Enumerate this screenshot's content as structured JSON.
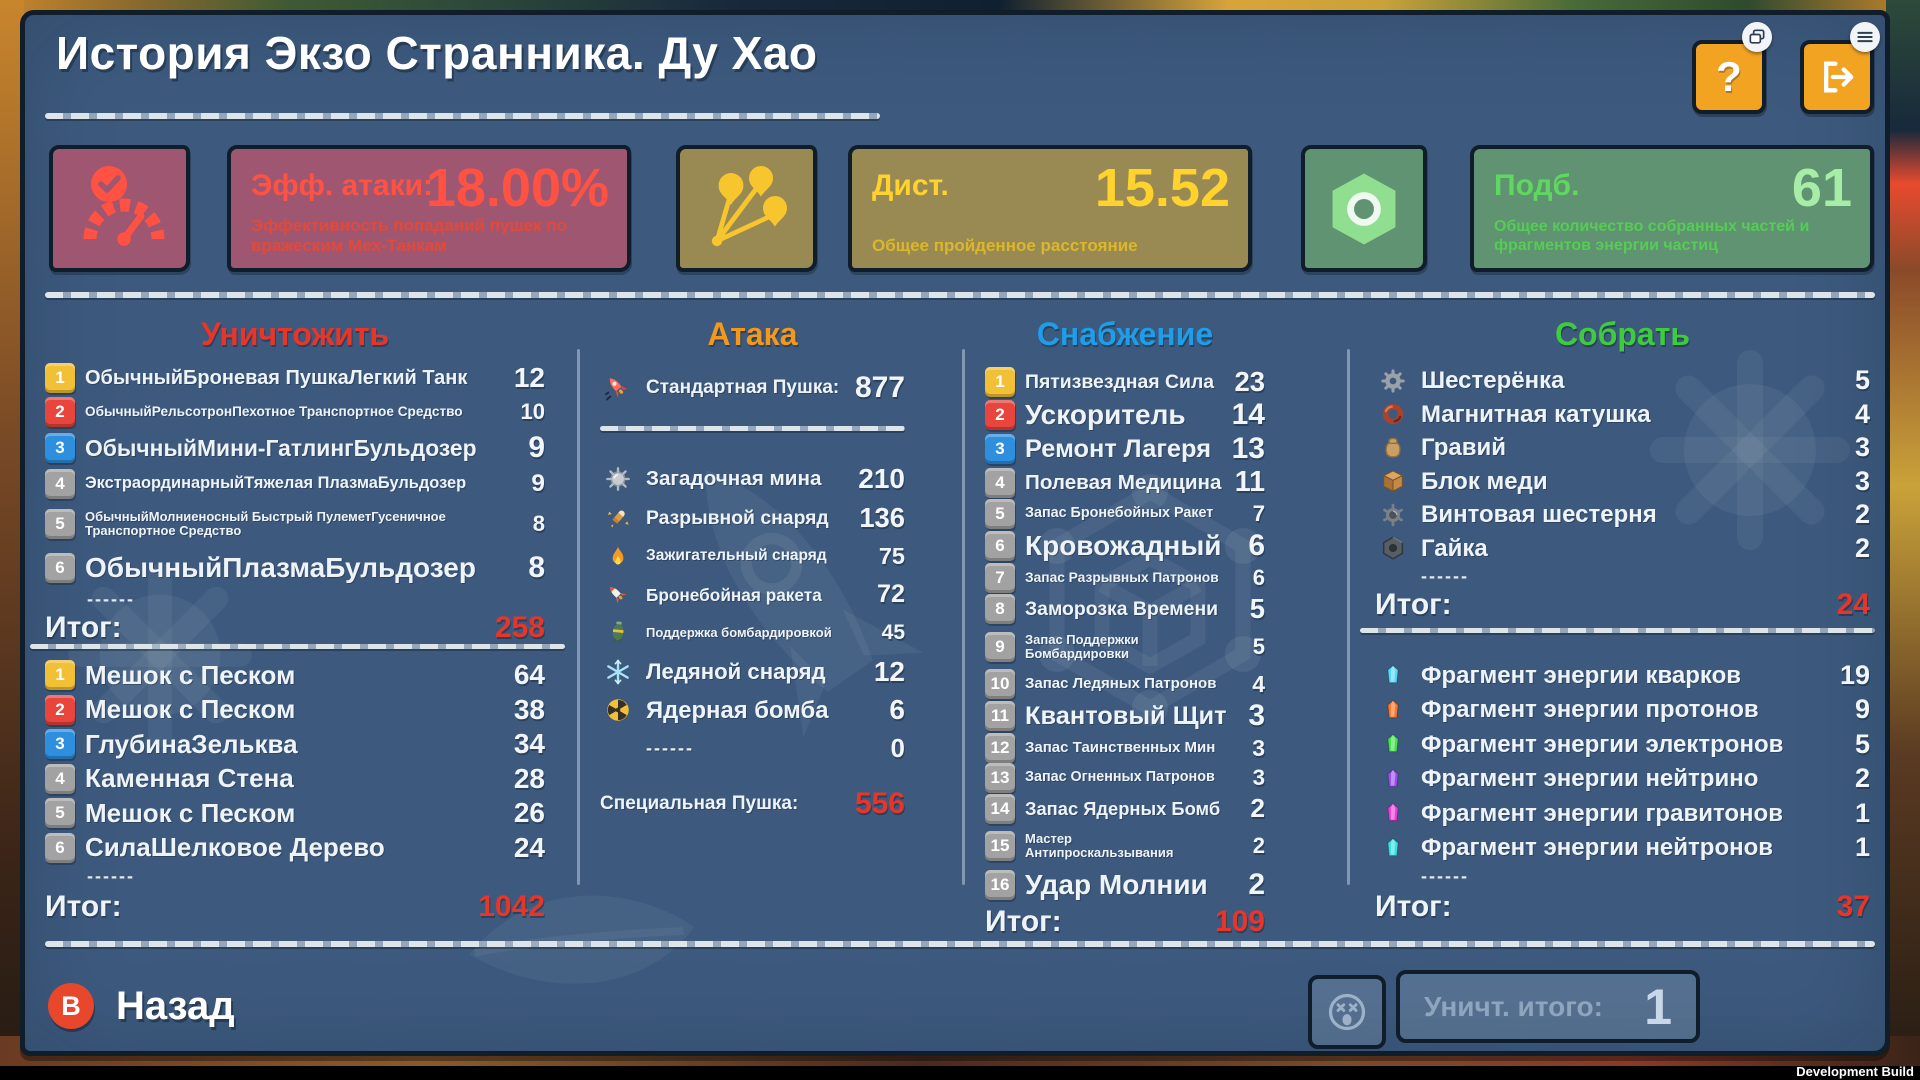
{
  "header": {
    "title": "История Экзо Странника. Ду Хао",
    "help_label": "?"
  },
  "stat_cards": {
    "attack_eff": {
      "label": "Эфф. атаки:",
      "value": "18.00%",
      "desc": "Эффективность попаданий пушек по вражеским Мех-Танкам"
    },
    "distance": {
      "label": "Дист.",
      "value": "15.52",
      "desc": "Общее пройденное расстояние"
    },
    "pickups": {
      "label": "Подб.",
      "value": "61",
      "desc": "Общее количество собранных частей и фрагментов энергии частиц"
    }
  },
  "colors": {
    "destroy_header": "#e8352a",
    "attack_header": "#f2991d",
    "supply_header": "#1e9de8",
    "collect_header": "#3ecb3e",
    "rank1": "#f2c037",
    "rank2": "#e8453c",
    "rank3": "#2d8fdd",
    "rank_other": "#a2a2a2",
    "total": "#e8352a"
  },
  "destroy": {
    "title": "Уничтожить",
    "dashes": "------",
    "total_label": "Итог:",
    "list1": [
      {
        "rank": 1,
        "name": "ОбычныйБроневая ПушкаЛегкий Танк",
        "value": "12"
      },
      {
        "rank": 2,
        "name": "ОбычныйРельсотронПехотное Транспортное Средство",
        "value": "10"
      },
      {
        "rank": 3,
        "name": "ОбычныйМини-ГатлингБульдозер",
        "value": "9"
      },
      {
        "rank": 4,
        "name": "ЭкстраординарныйТяжелая ПлазмаБульдозер",
        "value": "9"
      },
      {
        "rank": 5,
        "name": "ОбычныйМолниеносный Быстрый ПулеметГусеничное Транспортное Средство",
        "value": "8"
      },
      {
        "rank": 6,
        "name": "ОбычныйПлазмаБульдозер",
        "value": "8"
      }
    ],
    "total1": "258",
    "list2": [
      {
        "rank": 1,
        "name": "Мешок с Песком",
        "value": "64"
      },
      {
        "rank": 2,
        "name": "Мешок с Песком",
        "value": "38"
      },
      {
        "rank": 3,
        "name": "ГлубинаЗельква",
        "value": "34"
      },
      {
        "rank": 4,
        "name": "Каменная Стена",
        "value": "28"
      },
      {
        "rank": 5,
        "name": "Мешок с Песком",
        "value": "26"
      },
      {
        "rank": 6,
        "name": "СилаШелковое Дерево",
        "value": "24"
      }
    ],
    "total2": "1042"
  },
  "attack": {
    "title": "Атака",
    "standard_label": "Стандартная Пушка:",
    "standard_value": "877",
    "items": [
      {
        "icon": "mine",
        "name": "Загадочная мина",
        "value": "210"
      },
      {
        "icon": "shell",
        "name": "Разрывной снаряд",
        "value": "136"
      },
      {
        "icon": "fire",
        "name": "Зажигательный снаряд",
        "value": "75"
      },
      {
        "icon": "aprocket",
        "name": "Бронебойная ракета",
        "value": "72"
      },
      {
        "icon": "bomb",
        "name": "Поддержка бомбардировкой",
        "value": "45"
      },
      {
        "icon": "ice",
        "name": "Ледяной снаряд",
        "value": "12"
      },
      {
        "icon": "nuke",
        "name": "Ядерная бомба",
        "value": "6"
      },
      {
        "icon": "",
        "name": "------",
        "value": "0"
      }
    ],
    "special_label": "Специальная Пушка:",
    "special_value": "556"
  },
  "supply": {
    "title": "Снабжение",
    "total_label": "Итог:",
    "total": "109",
    "items": [
      {
        "rank": 1,
        "name": "Пятизвездная Сила",
        "value": "23"
      },
      {
        "rank": 2,
        "name": "Ускоритель",
        "value": "14"
      },
      {
        "rank": 3,
        "name": "Ремонт Лагеря",
        "value": "13"
      },
      {
        "rank": 4,
        "name": "Полевая Медицина",
        "value": "11"
      },
      {
        "rank": 5,
        "name": "Запас Бронебойных Ракет",
        "value": "7"
      },
      {
        "rank": 6,
        "name": "Кровожадный",
        "value": "6"
      },
      {
        "rank": 7,
        "name": "Запас Разрывных Патронов",
        "value": "6"
      },
      {
        "rank": 8,
        "name": "Заморозка Времени",
        "value": "5"
      },
      {
        "rank": 9,
        "name": "Запас Поддержки Бомбардировки",
        "value": "5"
      },
      {
        "rank": 10,
        "name": "Запас Ледяных Патронов",
        "value": "4"
      },
      {
        "rank": 11,
        "name": "Квантовый Щит",
        "value": "3"
      },
      {
        "rank": 12,
        "name": "Запас Таинственных Мин",
        "value": "3"
      },
      {
        "rank": 13,
        "name": "Запас Огненных Патронов",
        "value": "3"
      },
      {
        "rank": 14,
        "name": "Запас Ядерных Бомб",
        "value": "2"
      },
      {
        "rank": 15,
        "name": "Мастер Антипроскальзывания",
        "value": "2"
      },
      {
        "rank": 16,
        "name": "Удар Молнии",
        "value": "2"
      }
    ]
  },
  "collect": {
    "title": "Собрать",
    "dashes": "------",
    "total_label": "Итог:",
    "materials": [
      {
        "icon": "gear",
        "name": "Шестерёнка",
        "value": "5"
      },
      {
        "icon": "coil",
        "name": "Магнитная катушка",
        "value": "4"
      },
      {
        "icon": "gravel",
        "name": "Гравий",
        "value": "3"
      },
      {
        "icon": "copper",
        "name": "Блок меди",
        "value": "3"
      },
      {
        "icon": "screwgear",
        "name": "Винтовая шестерня",
        "value": "2"
      },
      {
        "icon": "nut",
        "name": "Гайка",
        "value": "2"
      }
    ],
    "total1": "24",
    "fragments": [
      {
        "color": "#54d8f5",
        "name": "Фрагмент энергии кварков",
        "value": "19"
      },
      {
        "color": "#ff7326",
        "name": "Фрагмент энергии протонов",
        "value": "9"
      },
      {
        "color": "#43e04a",
        "name": "Фрагмент энергии электронов",
        "value": "5"
      },
      {
        "color": "#9b4df0",
        "name": "Фрагмент энергии нейтрино",
        "value": "2"
      },
      {
        "color": "#e93ed9",
        "name": "Фрагмент энергии гравитонов",
        "value": "1"
      },
      {
        "color": "#35e0e0",
        "name": "Фрагмент энергии нейтронов",
        "value": "1"
      }
    ],
    "total2": "37"
  },
  "footer": {
    "back_key": "B",
    "back_label": "Назад",
    "destroyed_total_label": "Уничт. итого:",
    "destroyed_total_value": "1",
    "dev_build": "Development Build"
  }
}
